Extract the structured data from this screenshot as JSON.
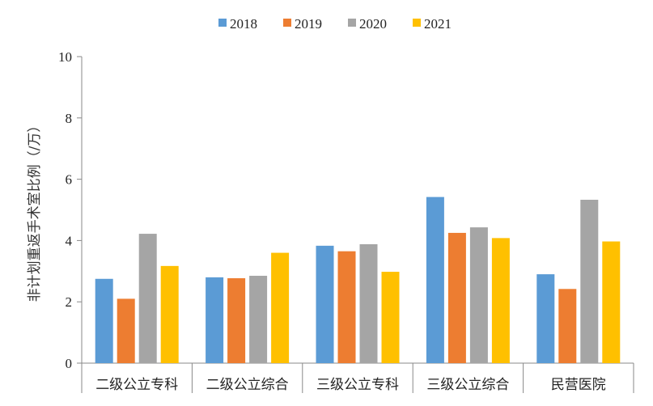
{
  "chart_data": {
    "type": "bar",
    "categories": [
      "二级公立专科",
      "二级公立综合",
      "三级公立专科",
      "三级公立综合",
      "民营医院"
    ],
    "series": [
      {
        "name": "2018",
        "color": "#5B9BD5",
        "values": [
          2.75,
          2.8,
          3.83,
          5.42,
          2.9
        ]
      },
      {
        "name": "2019",
        "color": "#ED7D31",
        "values": [
          2.1,
          2.77,
          3.65,
          4.25,
          2.42
        ]
      },
      {
        "name": "2020",
        "color": "#A5A5A5",
        "values": [
          4.22,
          2.85,
          3.88,
          4.43,
          5.33
        ]
      },
      {
        "name": "2021",
        "color": "#FFC000",
        "values": [
          3.17,
          3.6,
          2.98,
          4.08,
          3.97
        ]
      }
    ],
    "ylabel": "非计划重返手术室比例（/万）",
    "ylim": [
      0,
      10
    ],
    "yticks": [
      0,
      2,
      4,
      6,
      8,
      10
    ],
    "legend_position": "top-center",
    "grid": false
  }
}
